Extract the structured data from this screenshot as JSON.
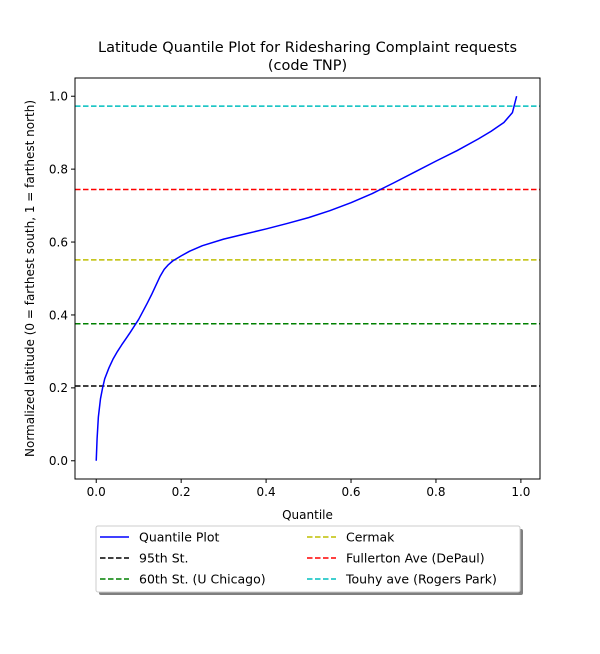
{
  "chart_data": {
    "type": "line",
    "title_line1": "Latitude Quantile Plot for Ridesharing Complaint  requests",
    "title_line2": "(code TNP)",
    "xlabel": "Quantile",
    "ylabel": "Normalized latitude (0 = farthest south, 1 = farthest north)",
    "xlim": [
      -0.05,
      1.045
    ],
    "ylim": [
      -0.05,
      1.05
    ],
    "xticks": [
      0.0,
      0.2,
      0.4,
      0.6,
      0.8,
      1.0
    ],
    "xtick_labels": [
      "0.0",
      "0.2",
      "0.4",
      "0.6",
      "0.8",
      "1.0"
    ],
    "yticks": [
      0.0,
      0.2,
      0.4,
      0.6,
      0.8,
      1.0
    ],
    "ytick_labels": [
      "0.0",
      "0.2",
      "0.4",
      "0.6",
      "0.8",
      "1.0"
    ],
    "grid": false,
    "legend_placement": "below plot",
    "series": [
      {
        "name": "Quantile Plot",
        "color": "#0000ff",
        "style": "solid",
        "x": [
          0.0,
          0.002,
          0.005,
          0.01,
          0.015,
          0.02,
          0.03,
          0.04,
          0.05,
          0.06,
          0.07,
          0.08,
          0.09,
          0.1,
          0.11,
          0.12,
          0.13,
          0.14,
          0.15,
          0.16,
          0.17,
          0.18,
          0.2,
          0.22,
          0.25,
          0.3,
          0.35,
          0.4,
          0.45,
          0.5,
          0.55,
          0.6,
          0.65,
          0.7,
          0.75,
          0.8,
          0.85,
          0.9,
          0.93,
          0.96,
          0.98,
          0.99
        ],
        "y": [
          0.0,
          0.06,
          0.12,
          0.17,
          0.2,
          0.225,
          0.255,
          0.28,
          0.3,
          0.318,
          0.335,
          0.352,
          0.37,
          0.388,
          0.41,
          0.432,
          0.455,
          0.48,
          0.505,
          0.525,
          0.538,
          0.548,
          0.562,
          0.575,
          0.59,
          0.608,
          0.622,
          0.636,
          0.651,
          0.667,
          0.686,
          0.708,
          0.733,
          0.762,
          0.792,
          0.822,
          0.851,
          0.883,
          0.904,
          0.928,
          0.955,
          1.0
        ]
      },
      {
        "name": "95th St.",
        "color": "#000000",
        "style": "dashed",
        "y": 0.205
      },
      {
        "name": "60th St. (U Chicago)",
        "color": "#008000",
        "style": "dashed",
        "y": 0.376
      },
      {
        "name": "Cermak",
        "color": "#bfbf00",
        "style": "dashed",
        "y": 0.551
      },
      {
        "name": "Fullerton Ave (DePaul)",
        "color": "#ff0000",
        "style": "dashed",
        "y": 0.744
      },
      {
        "name": "Touhy ave (Rogers Park)",
        "color": "#00bfbf",
        "style": "dashed",
        "y": 0.973
      }
    ]
  }
}
